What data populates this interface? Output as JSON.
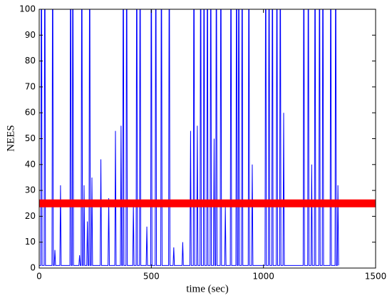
{
  "chart_data": {
    "type": "line",
    "x_label": "time (sec)",
    "y_label": "NEES",
    "series": [
      {
        "color": "#0000ff",
        "x": [
          0,
          7,
          10,
          13,
          22,
          25,
          28,
          57,
          60,
          63,
          67,
          70,
          73,
          92,
          95,
          98,
          137,
          140,
          143,
          147,
          150,
          153,
          177,
          180,
          183,
          187,
          190,
          193,
          197,
          200,
          203,
          212,
          215,
          218,
          222,
          225,
          228,
          232,
          235,
          238,
          272,
          275,
          278,
          307,
          310,
          313,
          337,
          340,
          343,
          362,
          365,
          368,
          372,
          375,
          378,
          387,
          390,
          393,
          417,
          420,
          423,
          432,
          435,
          438,
          447,
          450,
          453,
          477,
          480,
          483,
          497,
          500,
          503,
          517,
          520,
          523,
          542,
          545,
          548,
          577,
          580,
          583,
          597,
          600,
          603,
          637,
          640,
          643,
          672,
          675,
          678,
          687,
          690,
          693,
          702,
          705,
          708,
          717,
          720,
          723,
          732,
          735,
          738,
          747,
          750,
          753,
          762,
          765,
          768,
          777,
          780,
          783,
          787,
          790,
          793,
          807,
          810,
          813,
          827,
          830,
          833,
          852,
          855,
          858,
          877,
          880,
          883,
          887,
          890,
          893,
          902,
          905,
          908,
          932,
          935,
          938,
          947,
          950,
          953,
          1007,
          1010,
          1013,
          1022,
          1025,
          1028,
          1037,
          1040,
          1043,
          1057,
          1060,
          1063,
          1072,
          1075,
          1078,
          1087,
          1090,
          1093,
          1177,
          1180,
          1183,
          1197,
          1200,
          1203,
          1212,
          1215,
          1218,
          1227,
          1230,
          1233,
          1247,
          1250,
          1253,
          1262,
          1265,
          1268,
          1297,
          1300,
          1303,
          1319,
          1322,
          1325,
          1329,
          1332,
          1335
        ],
        "values": [
          1,
          1,
          150,
          1,
          1,
          150,
          1,
          1,
          150,
          1,
          1,
          7,
          1,
          1,
          32,
          1,
          1,
          150,
          1,
          1,
          150,
          1,
          1,
          5,
          1,
          1,
          150,
          1,
          1,
          32,
          1,
          1,
          18,
          1,
          1,
          150,
          1,
          1,
          35,
          1,
          1,
          42,
          1,
          1,
          27,
          1,
          1,
          53,
          1,
          1,
          55,
          1,
          1,
          150,
          1,
          1,
          150,
          1,
          1,
          25,
          1,
          1,
          150,
          1,
          1,
          150,
          1,
          1,
          16,
          1,
          1,
          150,
          1,
          1,
          150,
          1,
          1,
          150,
          1,
          1,
          150,
          1,
          1,
          8,
          1,
          1,
          10,
          1,
          1,
          53,
          1,
          1,
          150,
          1,
          1,
          55,
          1,
          1,
          150,
          1,
          1,
          150,
          1,
          1,
          150,
          1,
          1,
          150,
          1,
          1,
          50,
          1,
          1,
          150,
          1,
          1,
          150,
          1,
          1,
          24,
          1,
          1,
          150,
          1,
          1,
          150,
          1,
          1,
          150,
          1,
          1,
          150,
          1,
          1,
          150,
          1,
          1,
          40,
          1,
          1,
          150,
          1,
          1,
          150,
          1,
          1,
          150,
          1,
          1,
          150,
          1,
          1,
          150,
          1,
          1,
          60,
          1,
          1,
          150,
          1,
          1,
          150,
          1,
          1,
          40,
          1,
          1,
          150,
          1,
          1,
          150,
          1,
          1,
          150,
          1,
          1,
          150,
          1,
          1,
          150,
          1,
          1,
          32,
          1
        ]
      },
      {
        "color": "#ff0000",
        "x": [
          0,
          1500
        ],
        "values": [
          25,
          25
        ]
      }
    ],
    "xlim": [
      0,
      1500
    ],
    "xticks": [
      0,
      500,
      1000,
      1500
    ],
    "ylim": [
      0,
      100
    ],
    "yticks": [
      0,
      10,
      20,
      30,
      40,
      50,
      60,
      70,
      80,
      90,
      100
    ]
  }
}
